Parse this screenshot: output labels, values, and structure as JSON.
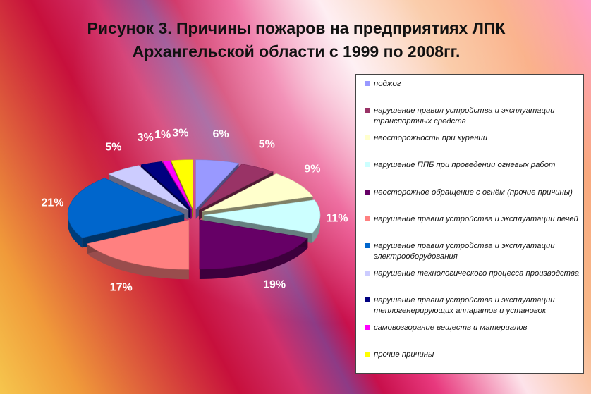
{
  "title": "Рисунок 3. Причины пожаров на предприятиях ЛПК Архангельской области с 1999 по 2008гг.",
  "chart_data": {
    "type": "pie",
    "title": "Рисунок 3. Причины пожаров на предприятиях ЛПК Архангельской области с 1999 по 2008гг.",
    "legend_position": "right",
    "three_d": true,
    "exploded": true,
    "categories": [
      "поджог",
      "нарушение правил устройства и эксплуатации транспортных средств",
      "неосторожность при курении",
      "нарушение ППБ при проведении огневых работ",
      "неосторожное обращение с огнём (прочие причины)",
      "нарушение правил устройства и эксплуатации печей",
      "нарушение правил устройства и эксплуатации электрооборудования",
      "нарушение технологического процесса производства",
      "нарушение правил устройства и эксплуатации теплогенерирующих аппаратов и установок",
      "самовозгорание веществ и материалов",
      "прочие причины"
    ],
    "values": [
      6,
      5,
      9,
      11,
      19,
      17,
      21,
      5,
      3,
      1,
      3
    ],
    "labels": [
      "6%",
      "5%",
      "9%",
      "11%",
      "19%",
      "17%",
      "21%",
      "5%",
      "3%",
      "1%",
      "3%"
    ],
    "colors": [
      "#9999ff",
      "#993366",
      "#ffffcc",
      "#ccffff",
      "#660066",
      "#ff8080",
      "#0066cc",
      "#ccccff",
      "#000080",
      "#ff00ff",
      "#ffff00"
    ]
  }
}
